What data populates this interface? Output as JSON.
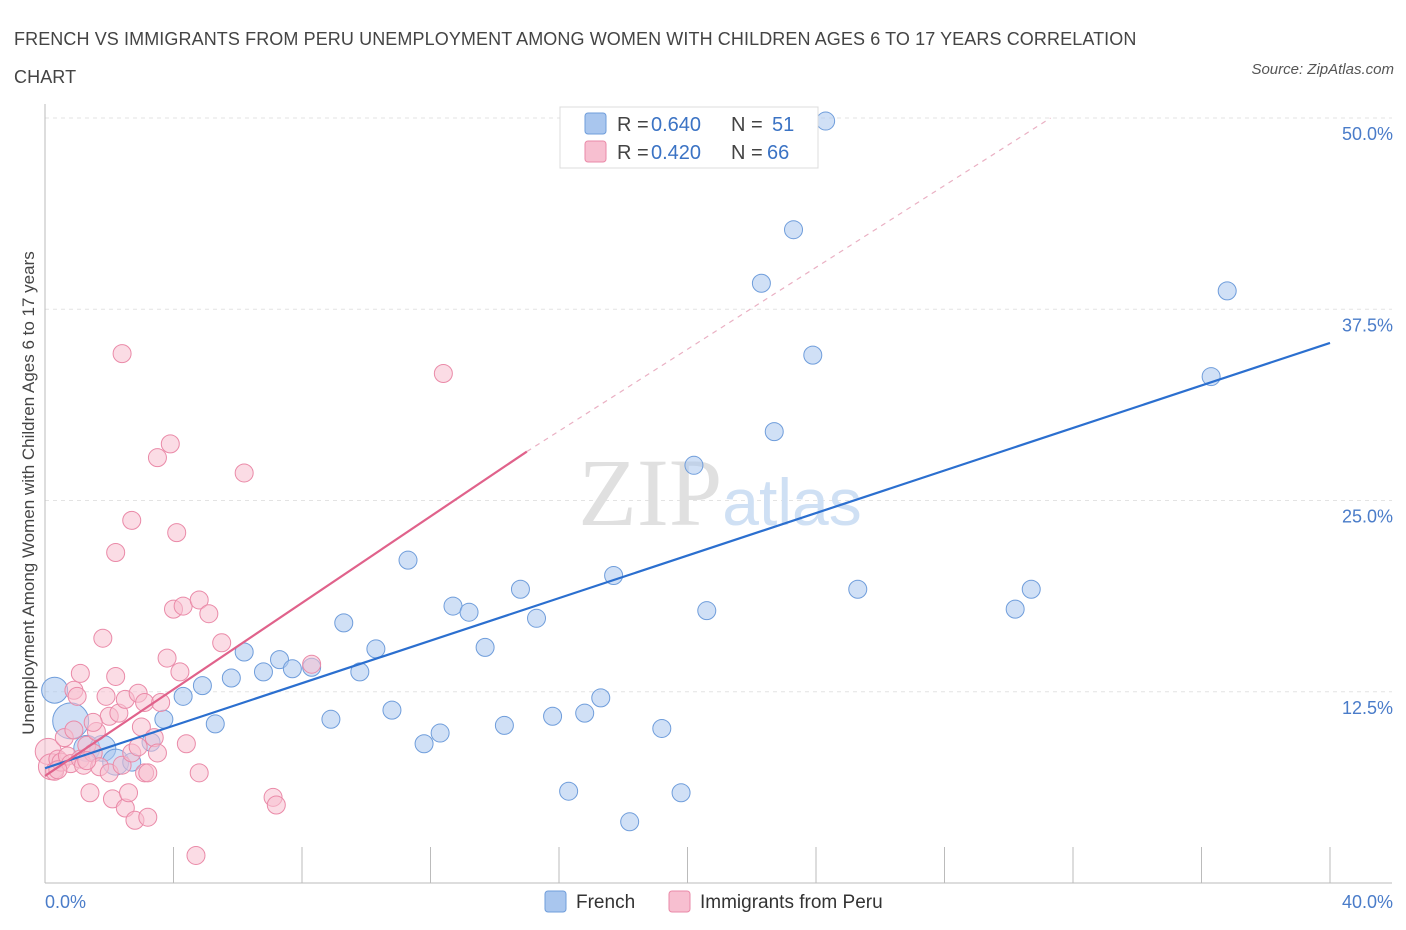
{
  "chart_data": {
    "type": "scatter",
    "title": "FRENCH VS IMMIGRANTS FROM PERU UNEMPLOYMENT AMONG WOMEN WITH CHILDREN AGES 6 TO 17 YEARS CORRELATION CHART",
    "source": "Source: ZipAtlas.com",
    "ylabel": "Unemployment Among Women with Children Ages 6 to 17 years",
    "xlim": [
      0,
      40
    ],
    "ylim": [
      0,
      50
    ],
    "x_tick_labels": [
      "0.0%",
      "40.0%"
    ],
    "y_ticks": [
      {
        "value": 12.5,
        "label": "12.5%"
      },
      {
        "value": 25,
        "label": "25.0%"
      },
      {
        "value": 37.5,
        "label": "37.5%"
      },
      {
        "value": 50,
        "label": "50.0%"
      }
    ],
    "watermark": "ZIPatlas",
    "series": [
      {
        "name": "French",
        "color": "#a9c6ee",
        "stroke": "#6f9ddb",
        "line_color": "#2b6fcf",
        "R": "0.640",
        "N": "51",
        "trend": {
          "x": [
            0,
            40
          ],
          "y": [
            7.5,
            35.3
          ]
        },
        "points": [
          {
            "x": 0.3,
            "y": 12.6,
            "s": 2
          },
          {
            "x": 0.8,
            "y": 10.6,
            "s": 3
          },
          {
            "x": 1.3,
            "y": 8.8,
            "s": 2
          },
          {
            "x": 1.8,
            "y": 8.8,
            "s": 2
          },
          {
            "x": 2.2,
            "y": 7.9,
            "s": 2
          },
          {
            "x": 2.7,
            "y": 7.9,
            "s": 1
          },
          {
            "x": 3.3,
            "y": 9.2,
            "s": 1
          },
          {
            "x": 3.7,
            "y": 10.7,
            "s": 1
          },
          {
            "x": 4.3,
            "y": 12.2,
            "s": 1
          },
          {
            "x": 4.9,
            "y": 12.9,
            "s": 1
          },
          {
            "x": 5.3,
            "y": 10.4,
            "s": 1
          },
          {
            "x": 5.8,
            "y": 13.4,
            "s": 1
          },
          {
            "x": 6.2,
            "y": 15.1,
            "s": 1
          },
          {
            "x": 6.8,
            "y": 13.8,
            "s": 1
          },
          {
            "x": 7.3,
            "y": 14.6,
            "s": 1
          },
          {
            "x": 7.7,
            "y": 14.0,
            "s": 1
          },
          {
            "x": 8.3,
            "y": 14.1,
            "s": 1
          },
          {
            "x": 8.9,
            "y": 10.7,
            "s": 1
          },
          {
            "x": 9.3,
            "y": 17.0,
            "s": 1
          },
          {
            "x": 9.8,
            "y": 13.8,
            "s": 1
          },
          {
            "x": 10.3,
            "y": 15.3,
            "s": 1
          },
          {
            "x": 10.8,
            "y": 11.3,
            "s": 1
          },
          {
            "x": 11.3,
            "y": 21.1,
            "s": 1
          },
          {
            "x": 11.8,
            "y": 9.1,
            "s": 1
          },
          {
            "x": 12.3,
            "y": 9.8,
            "s": 1
          },
          {
            "x": 12.7,
            "y": 18.1,
            "s": 1
          },
          {
            "x": 13.2,
            "y": 17.7,
            "s": 1
          },
          {
            "x": 13.7,
            "y": 15.4,
            "s": 1
          },
          {
            "x": 14.3,
            "y": 10.3,
            "s": 1
          },
          {
            "x": 14.8,
            "y": 19.2,
            "s": 1
          },
          {
            "x": 15.3,
            "y": 17.3,
            "s": 1
          },
          {
            "x": 15.8,
            "y": 10.9,
            "s": 1
          },
          {
            "x": 16.3,
            "y": 6.0,
            "s": 1
          },
          {
            "x": 16.8,
            "y": 11.1,
            "s": 1
          },
          {
            "x": 17.3,
            "y": 12.1,
            "s": 1
          },
          {
            "x": 17.7,
            "y": 20.1,
            "s": 1
          },
          {
            "x": 18.2,
            "y": 4.0,
            "s": 1
          },
          {
            "x": 19.2,
            "y": 10.1,
            "s": 1
          },
          {
            "x": 19.8,
            "y": 5.9,
            "s": 1
          },
          {
            "x": 20.2,
            "y": 27.3,
            "s": 1
          },
          {
            "x": 20.6,
            "y": 17.8,
            "s": 1
          },
          {
            "x": 22.3,
            "y": 39.2,
            "s": 1
          },
          {
            "x": 22.7,
            "y": 29.5,
            "s": 1
          },
          {
            "x": 23.3,
            "y": 42.7,
            "s": 1
          },
          {
            "x": 23.9,
            "y": 34.5,
            "s": 1
          },
          {
            "x": 24.3,
            "y": 49.8,
            "s": 1
          },
          {
            "x": 25.3,
            "y": 19.2,
            "s": 1
          },
          {
            "x": 30.2,
            "y": 17.9,
            "s": 1
          },
          {
            "x": 30.7,
            "y": 19.2,
            "s": 1
          },
          {
            "x": 36.3,
            "y": 33.1,
            "s": 1
          },
          {
            "x": 36.8,
            "y": 38.7,
            "s": 1
          }
        ]
      },
      {
        "name": "Immigrants from Peru",
        "color": "#f7bfd0",
        "stroke": "#ea8aa8",
        "line_color": "#e0628b",
        "R": "0.420",
        "N": "66",
        "trend": {
          "x": [
            0,
            15
          ],
          "y": [
            7.0,
            28.2
          ]
        },
        "trend_dashed": {
          "x": [
            15,
            31.3
          ],
          "y": [
            28.2,
            50
          ]
        },
        "points": [
          {
            "x": 0.1,
            "y": 8.6,
            "s": 2
          },
          {
            "x": 0.2,
            "y": 7.6,
            "s": 2
          },
          {
            "x": 0.3,
            "y": 7.3,
            "s": 1
          },
          {
            "x": 0.4,
            "y": 8.1,
            "s": 1
          },
          {
            "x": 0.5,
            "y": 7.9,
            "s": 1
          },
          {
            "x": 0.6,
            "y": 9.5,
            "s": 1
          },
          {
            "x": 0.7,
            "y": 8.3,
            "s": 1
          },
          {
            "x": 0.8,
            "y": 7.8,
            "s": 1
          },
          {
            "x": 0.9,
            "y": 12.6,
            "s": 1
          },
          {
            "x": 1.0,
            "y": 12.2,
            "s": 1
          },
          {
            "x": 1.1,
            "y": 8.1,
            "s": 1
          },
          {
            "x": 1.2,
            "y": 7.7,
            "s": 1
          },
          {
            "x": 1.1,
            "y": 13.7,
            "s": 1
          },
          {
            "x": 1.3,
            "y": 9.0,
            "s": 1
          },
          {
            "x": 1.4,
            "y": 5.9,
            "s": 1
          },
          {
            "x": 1.5,
            "y": 8.5,
            "s": 1
          },
          {
            "x": 1.6,
            "y": 9.9,
            "s": 1
          },
          {
            "x": 1.7,
            "y": 7.6,
            "s": 1
          },
          {
            "x": 1.8,
            "y": 16.0,
            "s": 1
          },
          {
            "x": 1.9,
            "y": 12.2,
            "s": 1
          },
          {
            "x": 2.0,
            "y": 7.2,
            "s": 1
          },
          {
            "x": 2.0,
            "y": 10.9,
            "s": 1
          },
          {
            "x": 2.1,
            "y": 5.5,
            "s": 1
          },
          {
            "x": 2.2,
            "y": 13.5,
            "s": 1
          },
          {
            "x": 2.2,
            "y": 21.6,
            "s": 1
          },
          {
            "x": 2.3,
            "y": 11.1,
            "s": 1
          },
          {
            "x": 2.4,
            "y": 7.7,
            "s": 1
          },
          {
            "x": 2.4,
            "y": 34.6,
            "s": 1
          },
          {
            "x": 2.5,
            "y": 12.0,
            "s": 1
          },
          {
            "x": 2.5,
            "y": 4.9,
            "s": 1
          },
          {
            "x": 2.6,
            "y": 5.9,
            "s": 1
          },
          {
            "x": 2.7,
            "y": 8.5,
            "s": 1
          },
          {
            "x": 2.7,
            "y": 23.7,
            "s": 1
          },
          {
            "x": 2.8,
            "y": 4.1,
            "s": 1
          },
          {
            "x": 2.9,
            "y": 12.4,
            "s": 1
          },
          {
            "x": 3.0,
            "y": 10.2,
            "s": 1
          },
          {
            "x": 3.1,
            "y": 7.2,
            "s": 1
          },
          {
            "x": 3.1,
            "y": 11.8,
            "s": 1
          },
          {
            "x": 3.2,
            "y": 7.2,
            "s": 1
          },
          {
            "x": 3.2,
            "y": 4.3,
            "s": 1
          },
          {
            "x": 3.4,
            "y": 9.5,
            "s": 1
          },
          {
            "x": 3.5,
            "y": 8.5,
            "s": 1
          },
          {
            "x": 3.5,
            "y": 27.8,
            "s": 1
          },
          {
            "x": 3.6,
            "y": 11.8,
            "s": 1
          },
          {
            "x": 3.8,
            "y": 14.7,
            "s": 1
          },
          {
            "x": 3.9,
            "y": 28.7,
            "s": 1
          },
          {
            "x": 4.0,
            "y": 17.9,
            "s": 1
          },
          {
            "x": 4.1,
            "y": 22.9,
            "s": 1
          },
          {
            "x": 4.2,
            "y": 13.8,
            "s": 1
          },
          {
            "x": 4.3,
            "y": 18.1,
            "s": 1
          },
          {
            "x": 4.4,
            "y": 9.1,
            "s": 1
          },
          {
            "x": 4.7,
            "y": 1.8,
            "s": 1
          },
          {
            "x": 4.8,
            "y": 7.2,
            "s": 1
          },
          {
            "x": 4.8,
            "y": 18.5,
            "s": 1
          },
          {
            "x": 5.1,
            "y": 17.6,
            "s": 1
          },
          {
            "x": 5.5,
            "y": 15.7,
            "s": 1
          },
          {
            "x": 6.2,
            "y": 26.8,
            "s": 1
          },
          {
            "x": 7.1,
            "y": 5.6,
            "s": 1
          },
          {
            "x": 7.2,
            "y": 5.1,
            "s": 1
          },
          {
            "x": 8.3,
            "y": 14.3,
            "s": 1
          },
          {
            "x": 12.4,
            "y": 33.3,
            "s": 1
          },
          {
            "x": 1.5,
            "y": 10.5,
            "s": 1
          },
          {
            "x": 0.9,
            "y": 10.0,
            "s": 1
          },
          {
            "x": 1.3,
            "y": 8.0,
            "s": 1
          },
          {
            "x": 0.4,
            "y": 7.4,
            "s": 1
          },
          {
            "x": 2.9,
            "y": 8.9,
            "s": 1
          }
        ]
      }
    ]
  }
}
